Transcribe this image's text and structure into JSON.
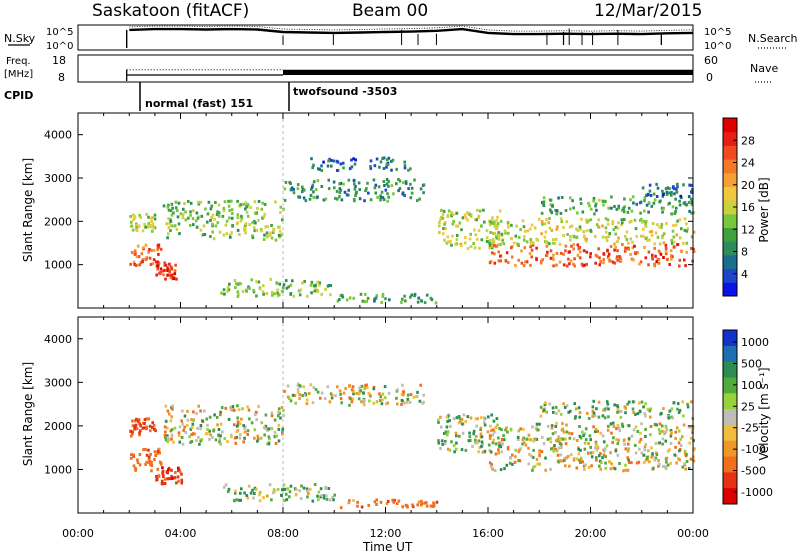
{
  "header": {
    "station": "Saskatoon (fitACF)",
    "beam": "Beam 00",
    "date": "12/Mar/2015"
  },
  "chart_data": [
    {
      "type": "line",
      "panel": "noise",
      "left_label": "N.Sky",
      "right_label": "N.Search",
      "left_ticks": [
        "10^5",
        "10^0"
      ],
      "right_ticks": [
        "10^5",
        "10^0"
      ],
      "series": [
        {
          "name": "N.Sky",
          "style": "solid"
        },
        {
          "name": "N.Search",
          "style": "dotted"
        }
      ],
      "start_hour": 1.9,
      "x": [
        2,
        3,
        4,
        5,
        6,
        7,
        8,
        9,
        10,
        11,
        12,
        13,
        14,
        15,
        16,
        17,
        18,
        19,
        20,
        21,
        22,
        23,
        24
      ],
      "values_log10": [
        4.3,
        4.5,
        4.5,
        4.4,
        4.5,
        4.4,
        3.8,
        3.7,
        3.6,
        3.7,
        3.8,
        3.9,
        4.1,
        4.5,
        3.6,
        3.3,
        3.3,
        3.4,
        3.3,
        3.4,
        3.3,
        3.5,
        3.6
      ]
    },
    {
      "type": "line",
      "panel": "frequency",
      "left_label": "Freq.",
      "left_unit": "[MHz]",
      "right_label": "Nave",
      "left_ticks": [
        18,
        8
      ],
      "right_ticks": [
        60,
        0
      ],
      "freq_low_mhz": 10.4,
      "freq_high_mhz": 12.5,
      "switch_hour": 8.0
    },
    {
      "type": "table",
      "panel": "cpid",
      "label": "CPID",
      "programs": [
        {
          "name": "normal (fast) 151",
          "start": 1.9
        },
        {
          "name": "twofsound -3503",
          "start": 8.0
        }
      ]
    },
    {
      "type": "heatmap",
      "panel": "power",
      "ylabel": "Slant Range [km]",
      "ylim": [
        0,
        4500
      ],
      "yticks": [
        1000,
        2000,
        3000,
        4000
      ],
      "colorbar": {
        "label": "Power [dB]",
        "ticks": [
          4,
          8,
          12,
          16,
          20,
          24,
          28
        ],
        "range": [
          0,
          32
        ],
        "colors": [
          "#0a14e6",
          "#1e46c8",
          "#1a6e8c",
          "#2e8c5a",
          "#3fa040",
          "#78c83c",
          "#c8d23c",
          "#f0c83c",
          "#f5a032",
          "#f57828",
          "#f04b1e",
          "#e61e14",
          "#dc0000"
        ]
      },
      "echo_regions": [
        {
          "x": [
            2.0,
            3.2
          ],
          "r": [
            1000,
            1500
          ],
          "dB": 26
        },
        {
          "x": [
            3.0,
            3.8
          ],
          "r": [
            700,
            1100
          ],
          "dB": 29
        },
        {
          "x": [
            2.0,
            3.0
          ],
          "r": [
            1800,
            2200
          ],
          "dB": 14
        },
        {
          "x": [
            3.3,
            8.0
          ],
          "r": [
            1600,
            2500
          ],
          "dB": 13
        },
        {
          "x": [
            8.0,
            13.5
          ],
          "r": [
            2500,
            3000
          ],
          "dB": 8
        },
        {
          "x": [
            9.0,
            13.0
          ],
          "r": [
            3200,
            3500
          ],
          "dB": 6
        },
        {
          "x": [
            5.5,
            10.0
          ],
          "r": [
            300,
            700
          ],
          "dB": 12
        },
        {
          "x": [
            10.0,
            14.0
          ],
          "r": [
            150,
            350
          ],
          "dB": 10
        },
        {
          "x": [
            14.0,
            16.5
          ],
          "r": [
            1400,
            2300
          ],
          "dB": 15
        },
        {
          "x": [
            16.0,
            24.0
          ],
          "r": [
            1000,
            1500
          ],
          "dB": 26
        },
        {
          "x": [
            16.0,
            24.0
          ],
          "r": [
            1500,
            2100
          ],
          "dB": 16
        },
        {
          "x": [
            18.0,
            24.0
          ],
          "r": [
            2200,
            2600
          ],
          "dB": 10
        },
        {
          "x": [
            22.0,
            24.0
          ],
          "r": [
            2600,
            2900
          ],
          "dB": 6
        }
      ]
    },
    {
      "type": "heatmap",
      "panel": "velocity",
      "ylabel": "Slant Range [km]",
      "ylim": [
        0,
        4500
      ],
      "yticks": [
        1000,
        2000,
        3000,
        4000
      ],
      "xlabel": "Time UT",
      "xticks": [
        "00:00",
        "04:00",
        "08:00",
        "12:00",
        "16:00",
        "20:00",
        "00:00"
      ],
      "xlim": [
        0,
        24
      ],
      "colorbar": {
        "label": "Velocity [m s⁻¹]",
        "ticks": [
          "1000",
          "500",
          "100",
          "25",
          "-25",
          "-100",
          "-500",
          "-1000"
        ],
        "colors": [
          "#1432c8",
          "#1e6eb4",
          "#2d8c50",
          "#50aa3c",
          "#96d23c",
          "#bebeb4",
          "#f0be3c",
          "#f09628",
          "#f06e1e",
          "#e63214",
          "#dc0000"
        ]
      },
      "echo_regions": [
        {
          "x": [
            2.0,
            3.2
          ],
          "r": [
            1000,
            1500
          ],
          "v": -200
        },
        {
          "x": [
            3.0,
            4.0
          ],
          "r": [
            700,
            1100
          ],
          "v": -400
        },
        {
          "x": [
            2.0,
            3.0
          ],
          "r": [
            1800,
            2200
          ],
          "v": -300
        },
        {
          "x": [
            3.3,
            8.0
          ],
          "r": [
            1600,
            2500
          ],
          "v": 0
        },
        {
          "x": [
            8.0,
            13.5
          ],
          "r": [
            2500,
            3000
          ],
          "v": 0
        },
        {
          "x": [
            5.5,
            10.0
          ],
          "r": [
            300,
            700
          ],
          "v": 80
        },
        {
          "x": [
            10.0,
            14.0
          ],
          "r": [
            150,
            350
          ],
          "v": -200
        },
        {
          "x": [
            14.0,
            16.5
          ],
          "r": [
            1400,
            2300
          ],
          "v": 50
        },
        {
          "x": [
            16.0,
            24.0
          ],
          "r": [
            1000,
            2100
          ],
          "v": 0
        },
        {
          "x": [
            18.0,
            24.0
          ],
          "r": [
            2200,
            2600
          ],
          "v": 60
        }
      ]
    }
  ]
}
